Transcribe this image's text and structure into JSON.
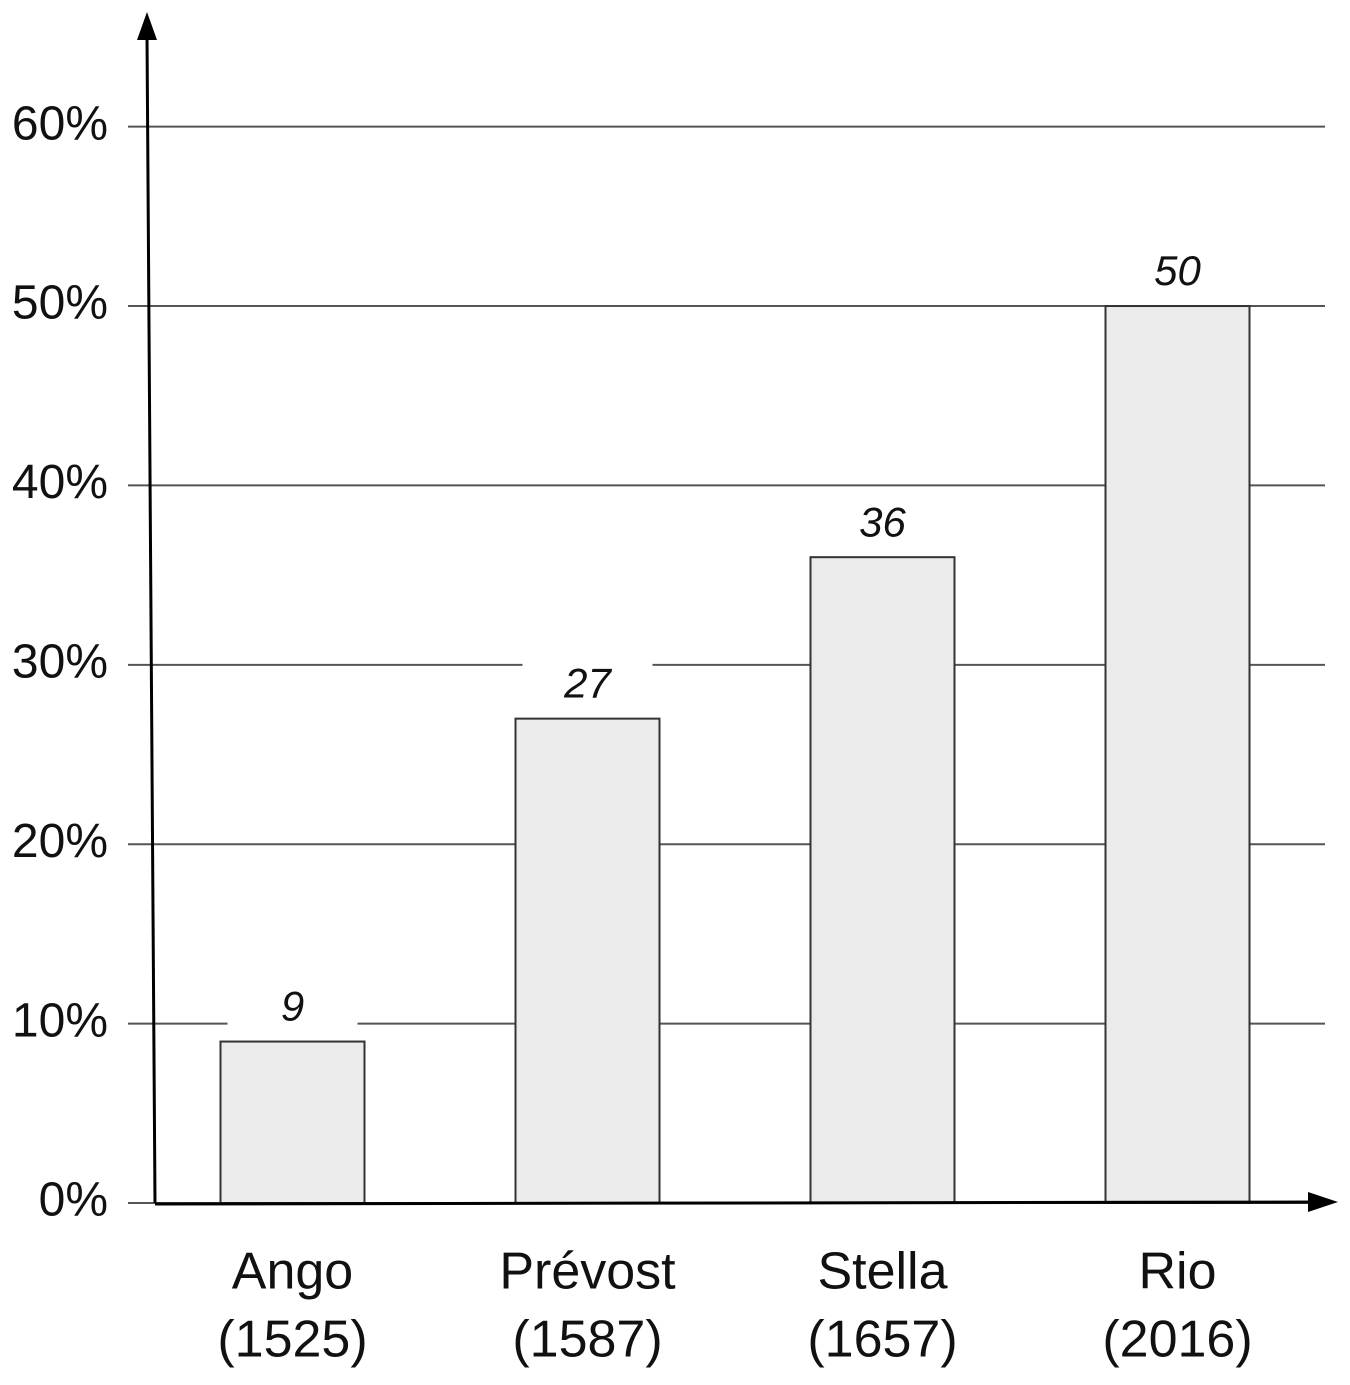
{
  "chart_data": {
    "type": "bar",
    "categories": [
      "Ango",
      "Prévost",
      "Stella",
      "Rio"
    ],
    "subcategories": [
      "(1525)",
      "(1587)",
      "(1657)",
      "(2016)"
    ],
    "values": [
      9,
      27,
      36,
      50
    ],
    "color": "#ebebeb",
    "ylim": [
      0,
      66
    ],
    "yticks": [
      {
        "value": 0,
        "label": "0%"
      },
      {
        "value": 10,
        "label": "10%"
      },
      {
        "value": 20,
        "label": "20%"
      },
      {
        "value": 30,
        "label": "30%"
      },
      {
        "value": 40,
        "label": "40%"
      },
      {
        "value": 50,
        "label": "50%"
      },
      {
        "value": 60,
        "label": "60%"
      }
    ],
    "grid": true
  }
}
